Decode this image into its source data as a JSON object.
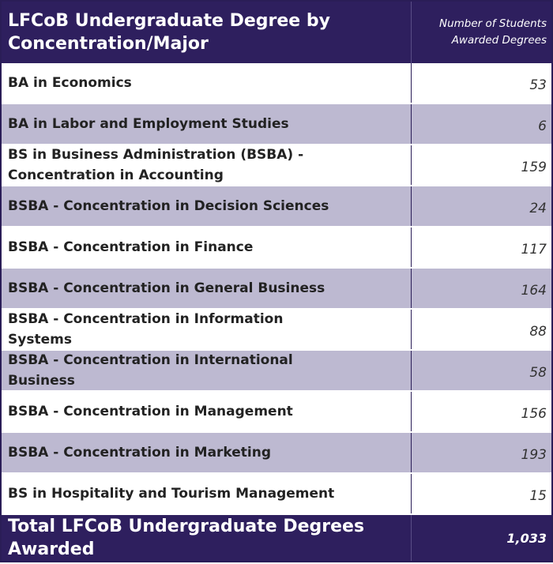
{
  "table": {
    "header": [
      "LFCoB Undergraduate Degree by Concentration/Major",
      "Number of Students Awarded Degrees"
    ],
    "rows": [
      [
        "BA in Economics",
        53
      ],
      [
        "BA in Labor and Employment Studies",
        6
      ],
      [
        "BS in Business Administration (BSBA) - Concentration in Accounting",
        159
      ],
      [
        "BSBA - Concentration in Decision Sciences",
        24
      ],
      [
        "BSBA - Concentration in Finance",
        117
      ],
      [
        "BSBA - Concentration in General Business",
        164
      ],
      [
        "BSBA - Concentration in Information Systems",
        88
      ],
      [
        "BSBA - Concentration in International Business",
        58
      ],
      [
        "BSBA - Concentration in Management",
        156
      ],
      [
        "BSBA - Concentration in Marketing",
        193
      ],
      [
        "BS in Hospitality and Tourism Management",
        15
      ]
    ],
    "total": [
      "Total LFCoB Undergraduate Degrees Awarded",
      "1,033"
    ]
  }
}
